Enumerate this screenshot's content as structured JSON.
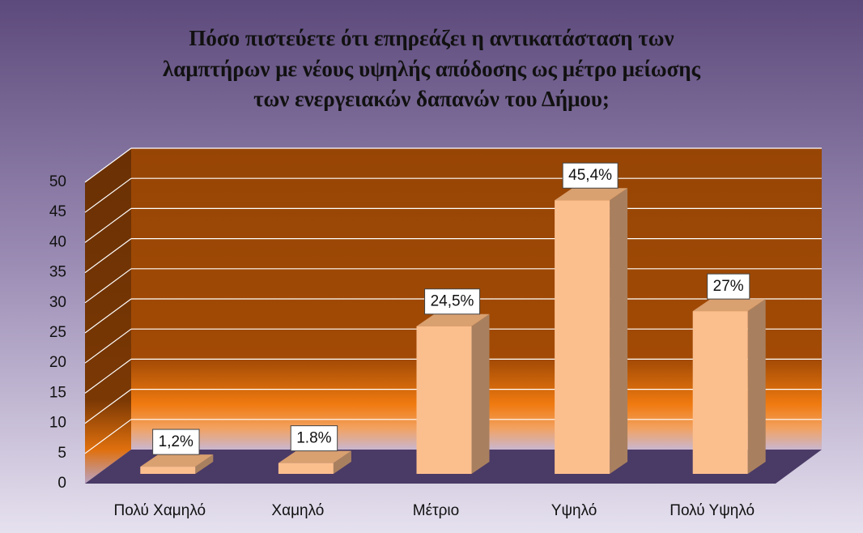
{
  "chart_data": {
    "type": "bar3d",
    "title": [
      "Πόσο πιστεύετε ότι επηρεάζει η αντικατάσταση των",
      "λαμπτήρων με νέους υψηλής απόδοσης ως μέτρο μείωσης",
      "των ενεργειακών δαπανών του Δήμου;"
    ],
    "categories": [
      "Πολύ Χαμηλό",
      "Χαμηλό",
      "Μέτριο",
      "Υψηλό",
      "Πολύ Υψηλό"
    ],
    "values": [
      1.2,
      1.8,
      24.5,
      45.4,
      27
    ],
    "value_labels": [
      "1,2%",
      "1.8%",
      "24,5%",
      "45,4%",
      "27%"
    ],
    "color": "#fbbf8e",
    "ylim": [
      0,
      50
    ],
    "yticks": [
      0,
      5,
      10,
      15,
      20,
      25,
      30,
      35,
      40,
      45,
      50
    ],
    "grid": true
  }
}
